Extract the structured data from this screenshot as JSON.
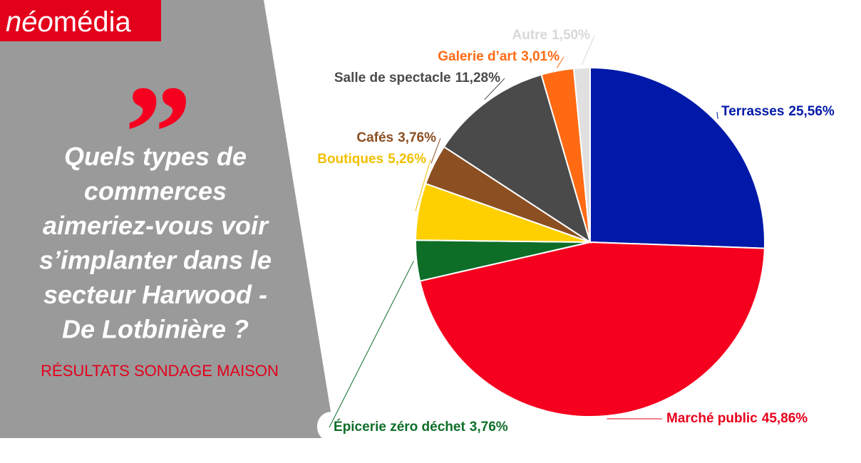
{
  "brand": {
    "prefix": "néo",
    "suffix": "média"
  },
  "quote_mark": "”",
  "question": [
    "Quels types de",
    "commerces",
    "aimeriez-vous voir",
    "s’implanter dans le",
    "secteur Harwood -",
    "De Lotbinière ?"
  ],
  "subtitle": "RÉSULTATS SONDAGE MAISON",
  "chart_data": {
    "type": "pie",
    "categories": [
      "Terrasses",
      "Marché public",
      "Épicerie zéro déchet",
      "Boutiques",
      "Cafés",
      "Salle de spectacle",
      "Galerie d’art",
      "Autre"
    ],
    "values": [
      25.56,
      45.86,
      3.76,
      5.26,
      3.76,
      11.28,
      3.01,
      1.5
    ],
    "value_labels": [
      "25,56%",
      "45,86%",
      "3,76%",
      "5,26%",
      "3,76%",
      "11,28%",
      "3,01%",
      "1,50%"
    ],
    "colors": [
      "#0019a8",
      "#f5001e",
      "#0e6e28",
      "#ffd000",
      "#8b4f22",
      "#4a4a4a",
      "#ff6a13",
      "#e0e0e0"
    ],
    "label_colors": [
      "#0019a8",
      "#e8001c",
      "#0e6e28",
      "#f0c000",
      "#8b4f22",
      "#4a4a4a",
      "#ff6a13",
      "#d8d8d8"
    ]
  }
}
